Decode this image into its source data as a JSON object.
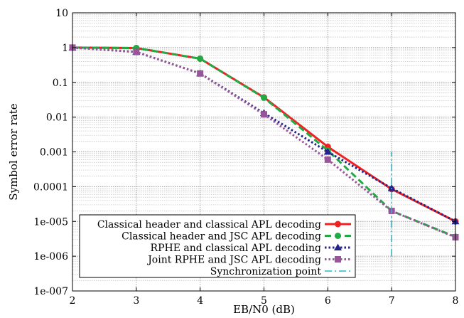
{
  "chart_data": {
    "type": "line",
    "xlabel": "EB/N0 (dB)",
    "ylabel": "Symbol error rate",
    "xlim": [
      2,
      8
    ],
    "ylim": [
      1e-07,
      10
    ],
    "yscale": "log",
    "grid": "major and minor",
    "legend_position": "bottom-left",
    "x_ticks": [
      2,
      3,
      4,
      5,
      6,
      7,
      8
    ],
    "x_tick_labels": [
      "2",
      "3",
      "4",
      "5",
      "6",
      "7",
      "8"
    ],
    "y_ticks": [
      1e-07,
      1e-06,
      1e-05,
      0.0001,
      0.001,
      0.01,
      0.1,
      1,
      10
    ],
    "y_tick_labels": [
      "1e-007",
      "1e-006",
      "1e-005",
      "0.0001",
      "0.001",
      "0.01",
      "0.1",
      "1",
      "10"
    ],
    "series": [
      {
        "name": "Classical header and classical APL decoding",
        "color": "#ee2222",
        "marker": "circle",
        "dash": "solid",
        "x": [
          2,
          3,
          4,
          5,
          6,
          7,
          8
        ],
        "y": [
          1.0,
          0.97,
          0.48,
          0.037,
          0.0014,
          8.5e-05,
          1e-05
        ]
      },
      {
        "name": "Classical header and JSC APL decoding",
        "color": "#22aa44",
        "marker": "circle",
        "dash": "dashed",
        "x": [
          2,
          3,
          4,
          5,
          6,
          7,
          8
        ],
        "y": [
          1.0,
          0.97,
          0.48,
          0.036,
          0.0011,
          2e-05,
          3.6e-06
        ]
      },
      {
        "name": "RPHE and classical APL decoding",
        "color": "#222288",
        "marker": "triangle",
        "dash": "dotted",
        "x": [
          2,
          3,
          4,
          5,
          6,
          7,
          8
        ],
        "y": [
          1.0,
          0.75,
          0.18,
          0.013,
          0.001,
          9e-05,
          1e-05
        ]
      },
      {
        "name": "Joint RPHE and JSC APL decoding",
        "color": "#995599",
        "marker": "square",
        "dash": "dotted",
        "x": [
          2,
          3,
          4,
          5,
          6,
          7,
          8
        ],
        "y": [
          1.0,
          0.75,
          0.18,
          0.012,
          0.0006,
          2e-05,
          3.5e-06
        ]
      },
      {
        "name": "Synchronization point",
        "color": "#22bbcc",
        "marker": "none",
        "dash": "dash-dot",
        "x": [
          7,
          7
        ],
        "y": [
          1e-06,
          0.001
        ]
      }
    ]
  }
}
